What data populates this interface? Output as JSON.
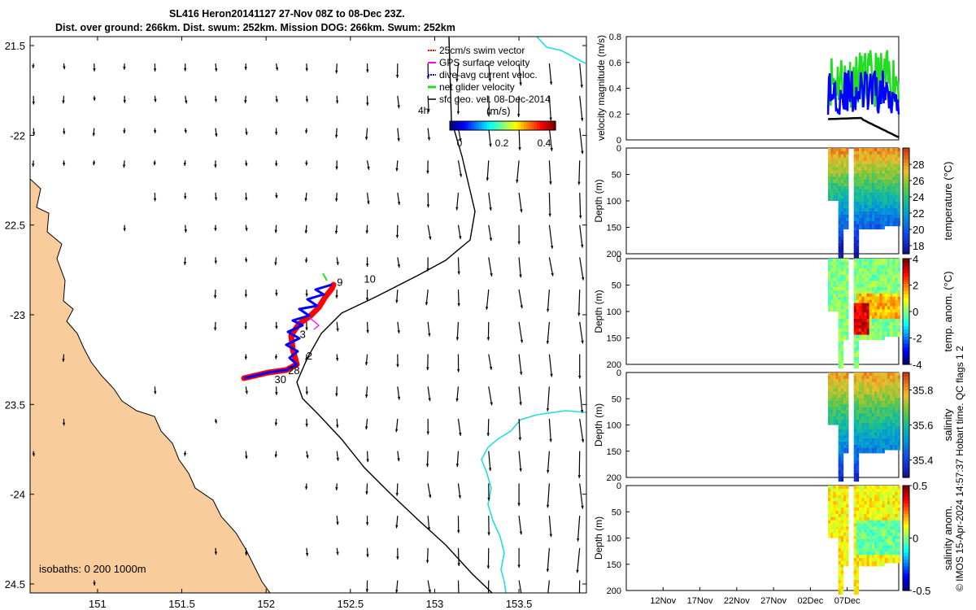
{
  "title_line1": "SL416 Heron20141127 27-Nov 08Z to 08-Dec 23Z.",
  "title_line2": "Dist. over ground: 266km. Dist. swum: 252km. Mission DOG: 266km. Swum: 252km",
  "colors": {
    "land": "#f9cc9c",
    "track_red": "#ff0000",
    "track_blue": "#0000ff",
    "gps_magenta": "#ff00ff",
    "net_green": "#22dd22",
    "coast_cyan": "#22dddd"
  },
  "chart_data": [
    {
      "type": "scatter",
      "name": "glider-track-map",
      "xlim": [
        150.6,
        153.9
      ],
      "ylim": [
        -24.55,
        -21.45
      ],
      "xticks": [
        151,
        151.5,
        152,
        152.5,
        153,
        153.5
      ],
      "xtick_labels": [
        "151",
        "151.5",
        "152",
        "152.5",
        "153",
        "153.5"
      ],
      "yticks": [
        -21.5,
        -22,
        -22.5,
        -23,
        -23.5,
        -24,
        -24.5
      ],
      "ytick_labels": [
        "21.5",
        "-22",
        "22.5",
        "-23",
        "23.5",
        "-24",
        "24.5"
      ],
      "legend": [
        {
          "label": "25cm/s swim vector",
          "color": "#ff0000"
        },
        {
          "label": "GPS surface velocity",
          "color": "#ff00ff"
        },
        {
          "label": "dive-avg current veloc.",
          "color": "#0000ff"
        },
        {
          "label": "net glider velocity",
          "color": "#22dd22"
        },
        {
          "label": "sfc geo. vel. 08-Dec-2014",
          "color": "#000000"
        }
      ],
      "colorbar": {
        "label": "(m/s)",
        "ticks": [
          "0",
          "0.2",
          "0.4"
        ],
        "range": [
          0,
          0.5
        ]
      },
      "isobath_label": "isobaths: 0   200  1000m",
      "scale_label": "4h",
      "track": [
        [
          151.9,
          -23.37
        ],
        [
          152.05,
          -23.33
        ],
        [
          152.13,
          -23.28
        ],
        [
          152.16,
          -23.2
        ],
        [
          152.14,
          -23.1
        ],
        [
          152.2,
          -23.0
        ],
        [
          152.28,
          -22.93
        ],
        [
          152.36,
          -22.86
        ],
        [
          152.42,
          -22.83
        ]
      ],
      "track_labels": [
        {
          "text": "9",
          "lon": 152.42,
          "lat": -22.84
        },
        {
          "text": "10",
          "lon": 152.58,
          "lat": -22.82
        },
        {
          "text": "3",
          "lon": 152.2,
          "lat": -23.13
        },
        {
          "text": "2",
          "lon": 152.24,
          "lat": -23.25
        },
        {
          "text": "28",
          "lon": 152.13,
          "lat": -23.33
        },
        {
          "text": "30",
          "lon": 152.05,
          "lat": -23.38
        }
      ]
    },
    {
      "type": "line",
      "name": "velocity-magnitude",
      "ylabel": "velocity magnitude (m/s)",
      "ylim": [
        0,
        0.8
      ],
      "yticks": [
        0,
        0.2,
        0.4,
        0.6,
        0.8
      ],
      "ytick_labels": [
        "0",
        "0.2",
        "0.4",
        "0.6",
        "0.8"
      ]
    },
    {
      "type": "heatmap",
      "name": "temperature",
      "ylabel": "Depth (m)",
      "cblabel": "temperature (°C)",
      "cbrange": [
        17,
        30
      ],
      "cbticks": [
        18,
        20,
        22,
        24,
        26,
        28
      ],
      "cbtick_labels": [
        "18",
        "20",
        "22",
        "24",
        "26",
        "28"
      ]
    },
    {
      "type": "heatmap",
      "name": "temp-anomaly",
      "ylabel": "Depth (m)",
      "cblabel": "temp. anom. (°C)",
      "cbrange": [
        -4,
        4
      ],
      "cbticks": [
        -4,
        -2,
        0,
        2,
        4
      ],
      "cbtick_labels": [
        "-4",
        "-2",
        "0",
        "2",
        "4"
      ]
    },
    {
      "type": "heatmap",
      "name": "salinity",
      "ylabel": "Depth (m)",
      "cblabel": "salinity",
      "cbrange": [
        35.3,
        35.9
      ],
      "cbticks": [
        35.4,
        35.6,
        35.8
      ],
      "cbtick_labels": [
        "35.4",
        "35.6",
        "35.8"
      ]
    },
    {
      "type": "heatmap",
      "name": "salinity-anomaly",
      "ylabel": "Depth (m)",
      "cblabel": "salinity anom.",
      "cbrange": [
        -0.5,
        0.5
      ],
      "cbticks": [
        -0.5,
        0,
        0.5
      ],
      "cbtick_labels": [
        "-0.5",
        "0",
        "0.5"
      ]
    }
  ],
  "time_axis": {
    "range_days": [
      0,
      37
    ],
    "ticks": [
      5,
      10,
      15,
      20,
      25,
      30
    ],
    "labels": [
      "12Nov",
      "17Nov",
      "22Nov",
      "27Nov",
      "02Dec",
      "07Dec"
    ]
  },
  "depth_axis": {
    "range": [
      0,
      200
    ],
    "ticks": [
      0,
      50,
      100,
      150,
      200
    ],
    "labels": [
      "0",
      "50",
      "100",
      "150",
      "200"
    ]
  },
  "credit_text": "© IMOS 15-Apr-2024 14:57:37 Hobart time. QC flags 1  2"
}
